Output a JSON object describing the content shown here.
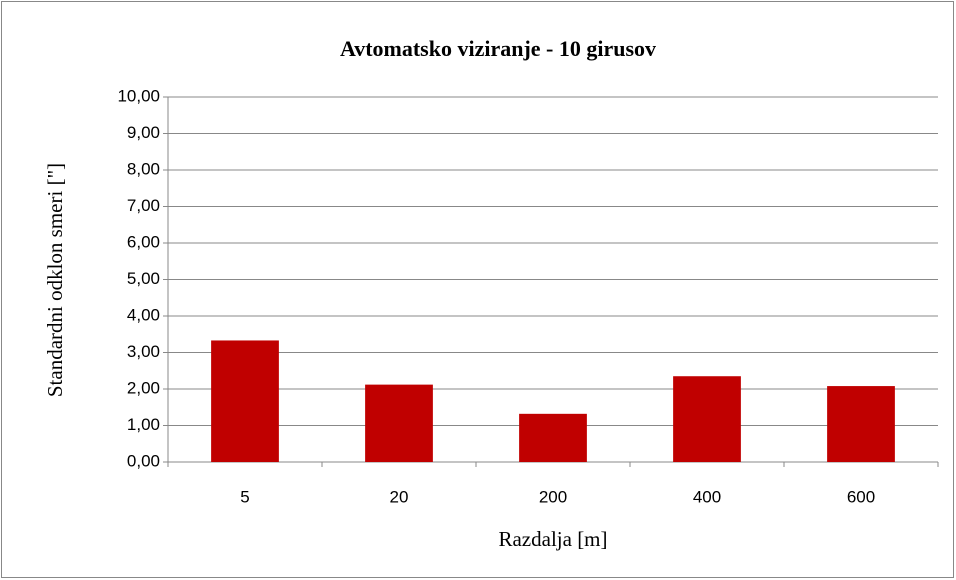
{
  "chart_data": {
    "type": "bar",
    "title": "Avtomatsko viziranje - 10 girusov",
    "x_label": "Razdalja [m]",
    "y_label": "Standardni odklon smeri [\"]",
    "categories": [
      "5",
      "20",
      "200",
      "400",
      "600"
    ],
    "values": [
      3.33,
      2.12,
      1.32,
      2.35,
      2.08
    ],
    "color": "#c00000",
    "ylim": [
      0,
      10
    ],
    "yticks": [
      {
        "value": 0,
        "label": "0,00"
      },
      {
        "value": 1,
        "label": "1,00"
      },
      {
        "value": 2,
        "label": "2,00"
      },
      {
        "value": 3,
        "label": "3,00"
      },
      {
        "value": 4,
        "label": "4,00"
      },
      {
        "value": 5,
        "label": "5,00"
      },
      {
        "value": 6,
        "label": "6,00"
      },
      {
        "value": 7,
        "label": "7,00"
      },
      {
        "value": 8,
        "label": "8,00"
      },
      {
        "value": 9,
        "label": "9,00"
      },
      {
        "value": 10,
        "label": "10,00"
      }
    ],
    "grid": true
  }
}
